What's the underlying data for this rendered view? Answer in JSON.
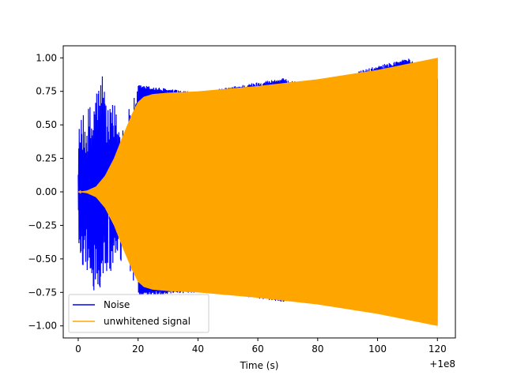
{
  "chart_data": {
    "type": "line",
    "title": "",
    "xlabel": "Time (s)",
    "ylabel": "",
    "x_offset_label": "+1e8",
    "xlim": [
      -5,
      126
    ],
    "ylim": [
      -1.09,
      1.09
    ],
    "xticks": [
      0,
      20,
      40,
      60,
      80,
      100,
      120
    ],
    "xtick_labels": [
      "0",
      "20",
      "40",
      "60",
      "80",
      "100",
      "120"
    ],
    "yticks": [
      -1.0,
      -0.75,
      -0.5,
      -0.25,
      0.0,
      0.25,
      0.5,
      0.75,
      1.0
    ],
    "ytick_labels": [
      "−1.00",
      "−0.75",
      "−0.50",
      "−0.25",
      "0.00",
      "0.25",
      "0.50",
      "0.75",
      "1.00"
    ],
    "grid": false,
    "legend_position": "lower-left",
    "series": [
      {
        "name": "Noise",
        "color": "#0000ff",
        "envelope_x": [
          0,
          1,
          3,
          5,
          8,
          10,
          12,
          15,
          18,
          20,
          40,
          55,
          68,
          80,
          95,
          110,
          120
        ],
        "envelope_upper": [
          0.48,
          0.55,
          0.62,
          0.72,
          0.95,
          0.6,
          0.68,
          0.55,
          0.66,
          0.8,
          0.74,
          0.8,
          0.85,
          0.78,
          0.91,
          1.0,
          0.85
        ],
        "envelope_lower": [
          -0.52,
          -0.55,
          -0.6,
          -0.78,
          -0.75,
          -0.6,
          -0.65,
          -0.52,
          -0.65,
          -0.78,
          -0.75,
          -0.78,
          -0.82,
          -0.8,
          -0.88,
          -0.95,
          -0.98
        ]
      },
      {
        "name": "unwhitened signal",
        "color": "#ffa500",
        "envelope_x": [
          0,
          3,
          6,
          9,
          12,
          15,
          18,
          20,
          22,
          25,
          30,
          40,
          60,
          80,
          100,
          120
        ],
        "envelope_upper": [
          0.0,
          0.01,
          0.04,
          0.12,
          0.25,
          0.42,
          0.58,
          0.67,
          0.71,
          0.73,
          0.74,
          0.75,
          0.79,
          0.84,
          0.91,
          1.0
        ],
        "envelope_lower": [
          0.0,
          -0.01,
          -0.04,
          -0.12,
          -0.25,
          -0.42,
          -0.58,
          -0.67,
          -0.71,
          -0.73,
          -0.74,
          -0.75,
          -0.79,
          -0.84,
          -0.91,
          -1.0
        ]
      }
    ]
  }
}
